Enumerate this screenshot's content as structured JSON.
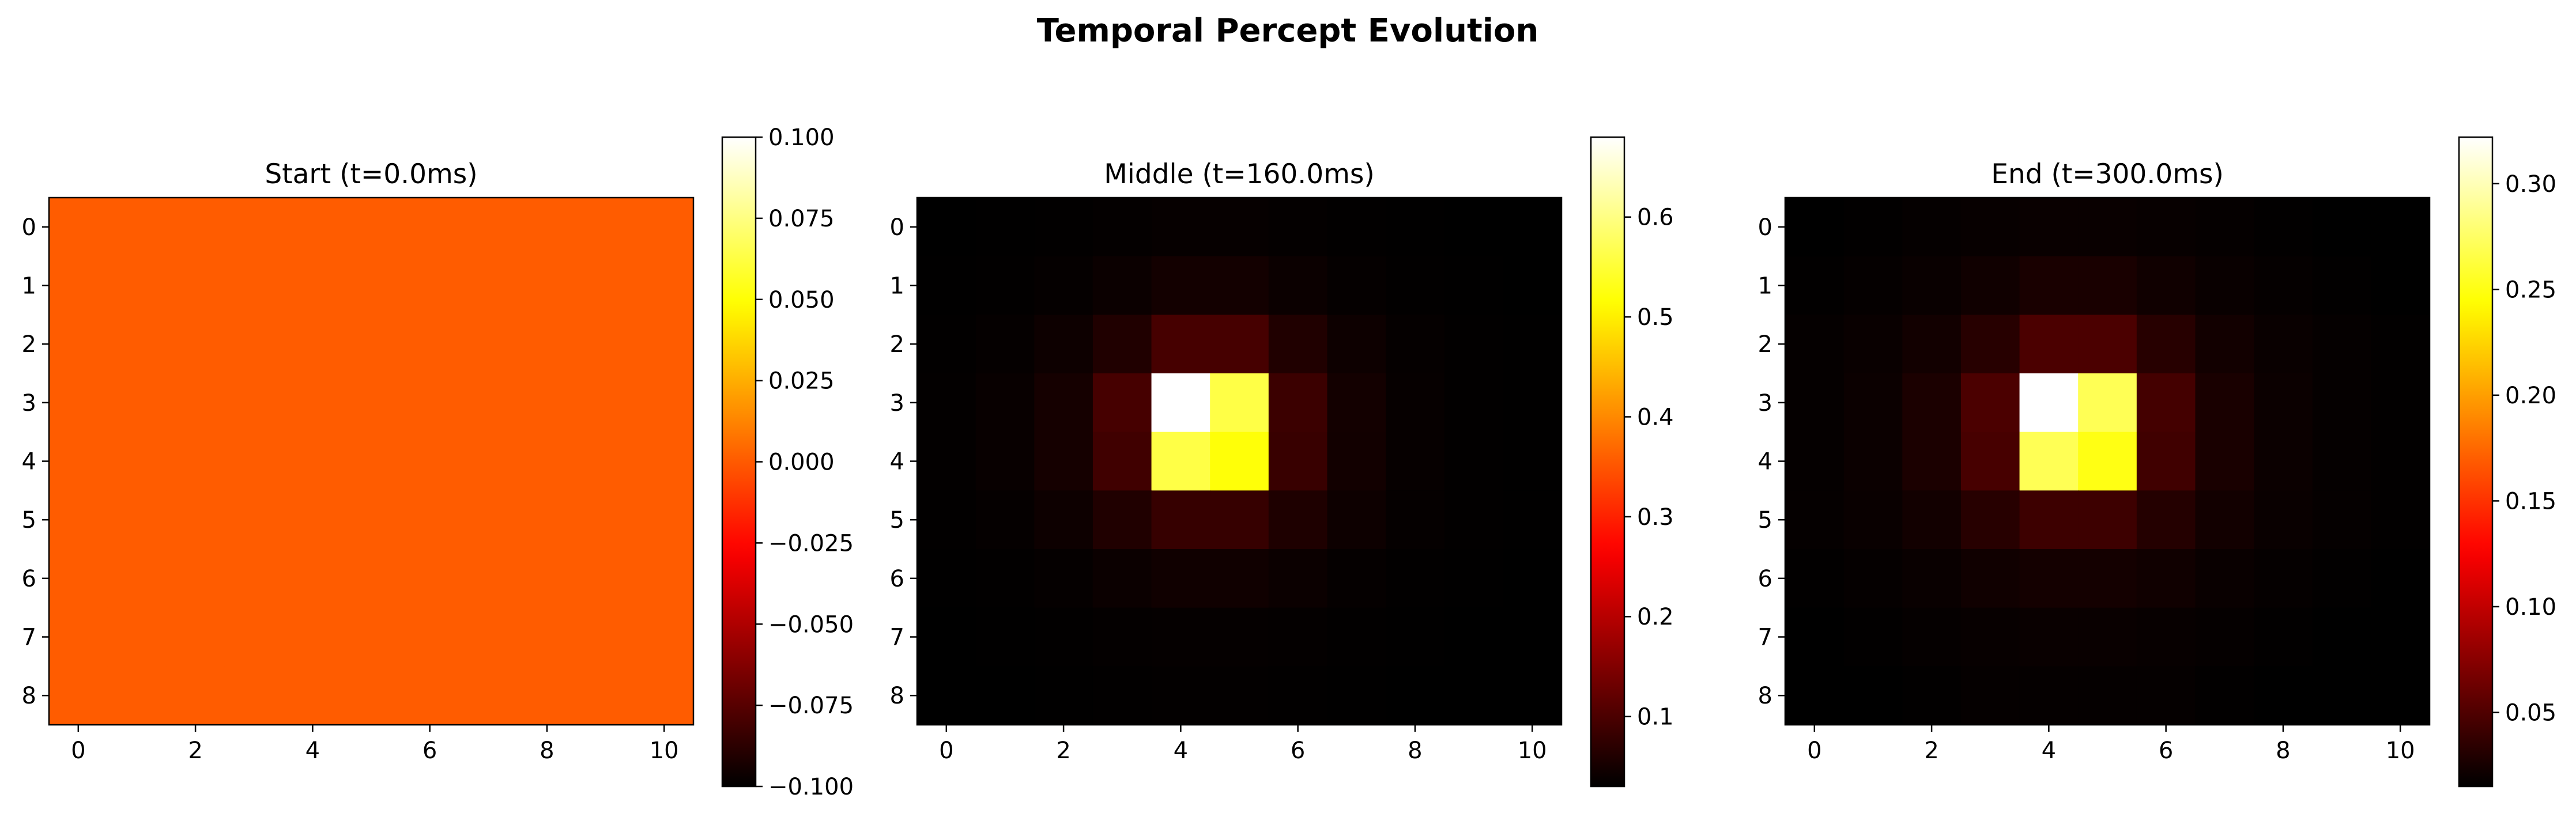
{
  "figure_title": "Temporal Percept Evolution",
  "colormap": "hot",
  "chart_data": [
    {
      "type": "heatmap",
      "title": "Start (t=0.0ms)",
      "xlabel": "",
      "ylabel": "",
      "rows": 9,
      "cols": 11,
      "x_ticks": [
        0,
        2,
        4,
        6,
        8,
        10
      ],
      "y_ticks": [
        0,
        1,
        2,
        3,
        4,
        5,
        6,
        7,
        8
      ],
      "colorbar": {
        "vmin": -0.1,
        "vmax": 0.1,
        "ticks": [
          -0.1,
          -0.075,
          -0.05,
          -0.025,
          0.0,
          0.025,
          0.05,
          0.075,
          0.1
        ],
        "tick_labels": [
          "−0.100",
          "−0.075",
          "−0.050",
          "−0.025",
          "0.000",
          "0.025",
          "0.050",
          "0.075",
          "0.100"
        ]
      },
      "uniform_value": 0.0,
      "uniform_color": "#ff5c00"
    },
    {
      "type": "heatmap",
      "title": "Middle (t=160.0ms)",
      "xlabel": "",
      "ylabel": "",
      "rows": 9,
      "cols": 11,
      "x_ticks": [
        0,
        2,
        4,
        6,
        8,
        10
      ],
      "y_ticks": [
        0,
        1,
        2,
        3,
        4,
        5,
        6,
        7,
        8
      ],
      "colorbar": {
        "vmin": 0.03,
        "vmax": 0.68,
        "ticks": [
          0.1,
          0.2,
          0.3,
          0.4,
          0.5,
          0.6
        ],
        "tick_labels": [
          "0.1",
          "0.2",
          "0.3",
          "0.4",
          "0.5",
          "0.6"
        ]
      },
      "values": [
        [
          0.03,
          0.031,
          0.032,
          0.034,
          0.036,
          0.036,
          0.034,
          0.032,
          0.031,
          0.03,
          0.03
        ],
        [
          0.031,
          0.032,
          0.035,
          0.04,
          0.048,
          0.048,
          0.04,
          0.035,
          0.032,
          0.031,
          0.03
        ],
        [
          0.032,
          0.035,
          0.042,
          0.06,
          0.095,
          0.095,
          0.06,
          0.042,
          0.035,
          0.032,
          0.031
        ],
        [
          0.033,
          0.037,
          0.05,
          0.095,
          0.68,
          0.56,
          0.085,
          0.048,
          0.036,
          0.032,
          0.031
        ],
        [
          0.033,
          0.037,
          0.05,
          0.09,
          0.56,
          0.52,
          0.082,
          0.047,
          0.036,
          0.032,
          0.031
        ],
        [
          0.032,
          0.035,
          0.042,
          0.06,
          0.08,
          0.08,
          0.058,
          0.042,
          0.035,
          0.032,
          0.031
        ],
        [
          0.031,
          0.032,
          0.035,
          0.04,
          0.045,
          0.045,
          0.04,
          0.035,
          0.032,
          0.031,
          0.03
        ],
        [
          0.03,
          0.031,
          0.032,
          0.034,
          0.035,
          0.035,
          0.034,
          0.032,
          0.031,
          0.03,
          0.03
        ],
        [
          0.03,
          0.03,
          0.031,
          0.032,
          0.033,
          0.033,
          0.032,
          0.031,
          0.03,
          0.03,
          0.03
        ]
      ]
    },
    {
      "type": "heatmap",
      "title": "End (t=300.0ms)",
      "xlabel": "",
      "ylabel": "",
      "rows": 9,
      "cols": 11,
      "x_ticks": [
        0,
        2,
        4,
        6,
        8,
        10
      ],
      "y_ticks": [
        0,
        1,
        2,
        3,
        4,
        5,
        6,
        7,
        8
      ],
      "colorbar": {
        "vmin": 0.015,
        "vmax": 0.322,
        "ticks": [
          0.05,
          0.1,
          0.15,
          0.2,
          0.25,
          0.3
        ],
        "tick_labels": [
          "0.05",
          "0.10",
          "0.15",
          "0.20",
          "0.25",
          "0.30"
        ]
      },
      "values": [
        [
          0.015,
          0.016,
          0.017,
          0.018,
          0.019,
          0.019,
          0.018,
          0.017,
          0.016,
          0.015,
          0.015
        ],
        [
          0.016,
          0.017,
          0.019,
          0.022,
          0.026,
          0.026,
          0.022,
          0.019,
          0.017,
          0.016,
          0.015
        ],
        [
          0.017,
          0.019,
          0.023,
          0.032,
          0.048,
          0.048,
          0.032,
          0.023,
          0.019,
          0.017,
          0.016
        ],
        [
          0.017,
          0.02,
          0.027,
          0.048,
          0.322,
          0.27,
          0.045,
          0.026,
          0.02,
          0.017,
          0.016
        ],
        [
          0.017,
          0.02,
          0.027,
          0.046,
          0.27,
          0.25,
          0.043,
          0.026,
          0.02,
          0.017,
          0.016
        ],
        [
          0.017,
          0.019,
          0.023,
          0.032,
          0.042,
          0.042,
          0.031,
          0.023,
          0.019,
          0.017,
          0.016
        ],
        [
          0.016,
          0.017,
          0.019,
          0.022,
          0.024,
          0.024,
          0.022,
          0.019,
          0.017,
          0.016,
          0.015
        ],
        [
          0.015,
          0.016,
          0.017,
          0.018,
          0.019,
          0.019,
          0.018,
          0.017,
          0.016,
          0.015,
          0.015
        ],
        [
          0.015,
          0.015,
          0.016,
          0.017,
          0.017,
          0.017,
          0.017,
          0.016,
          0.015,
          0.015,
          0.015
        ]
      ]
    }
  ]
}
